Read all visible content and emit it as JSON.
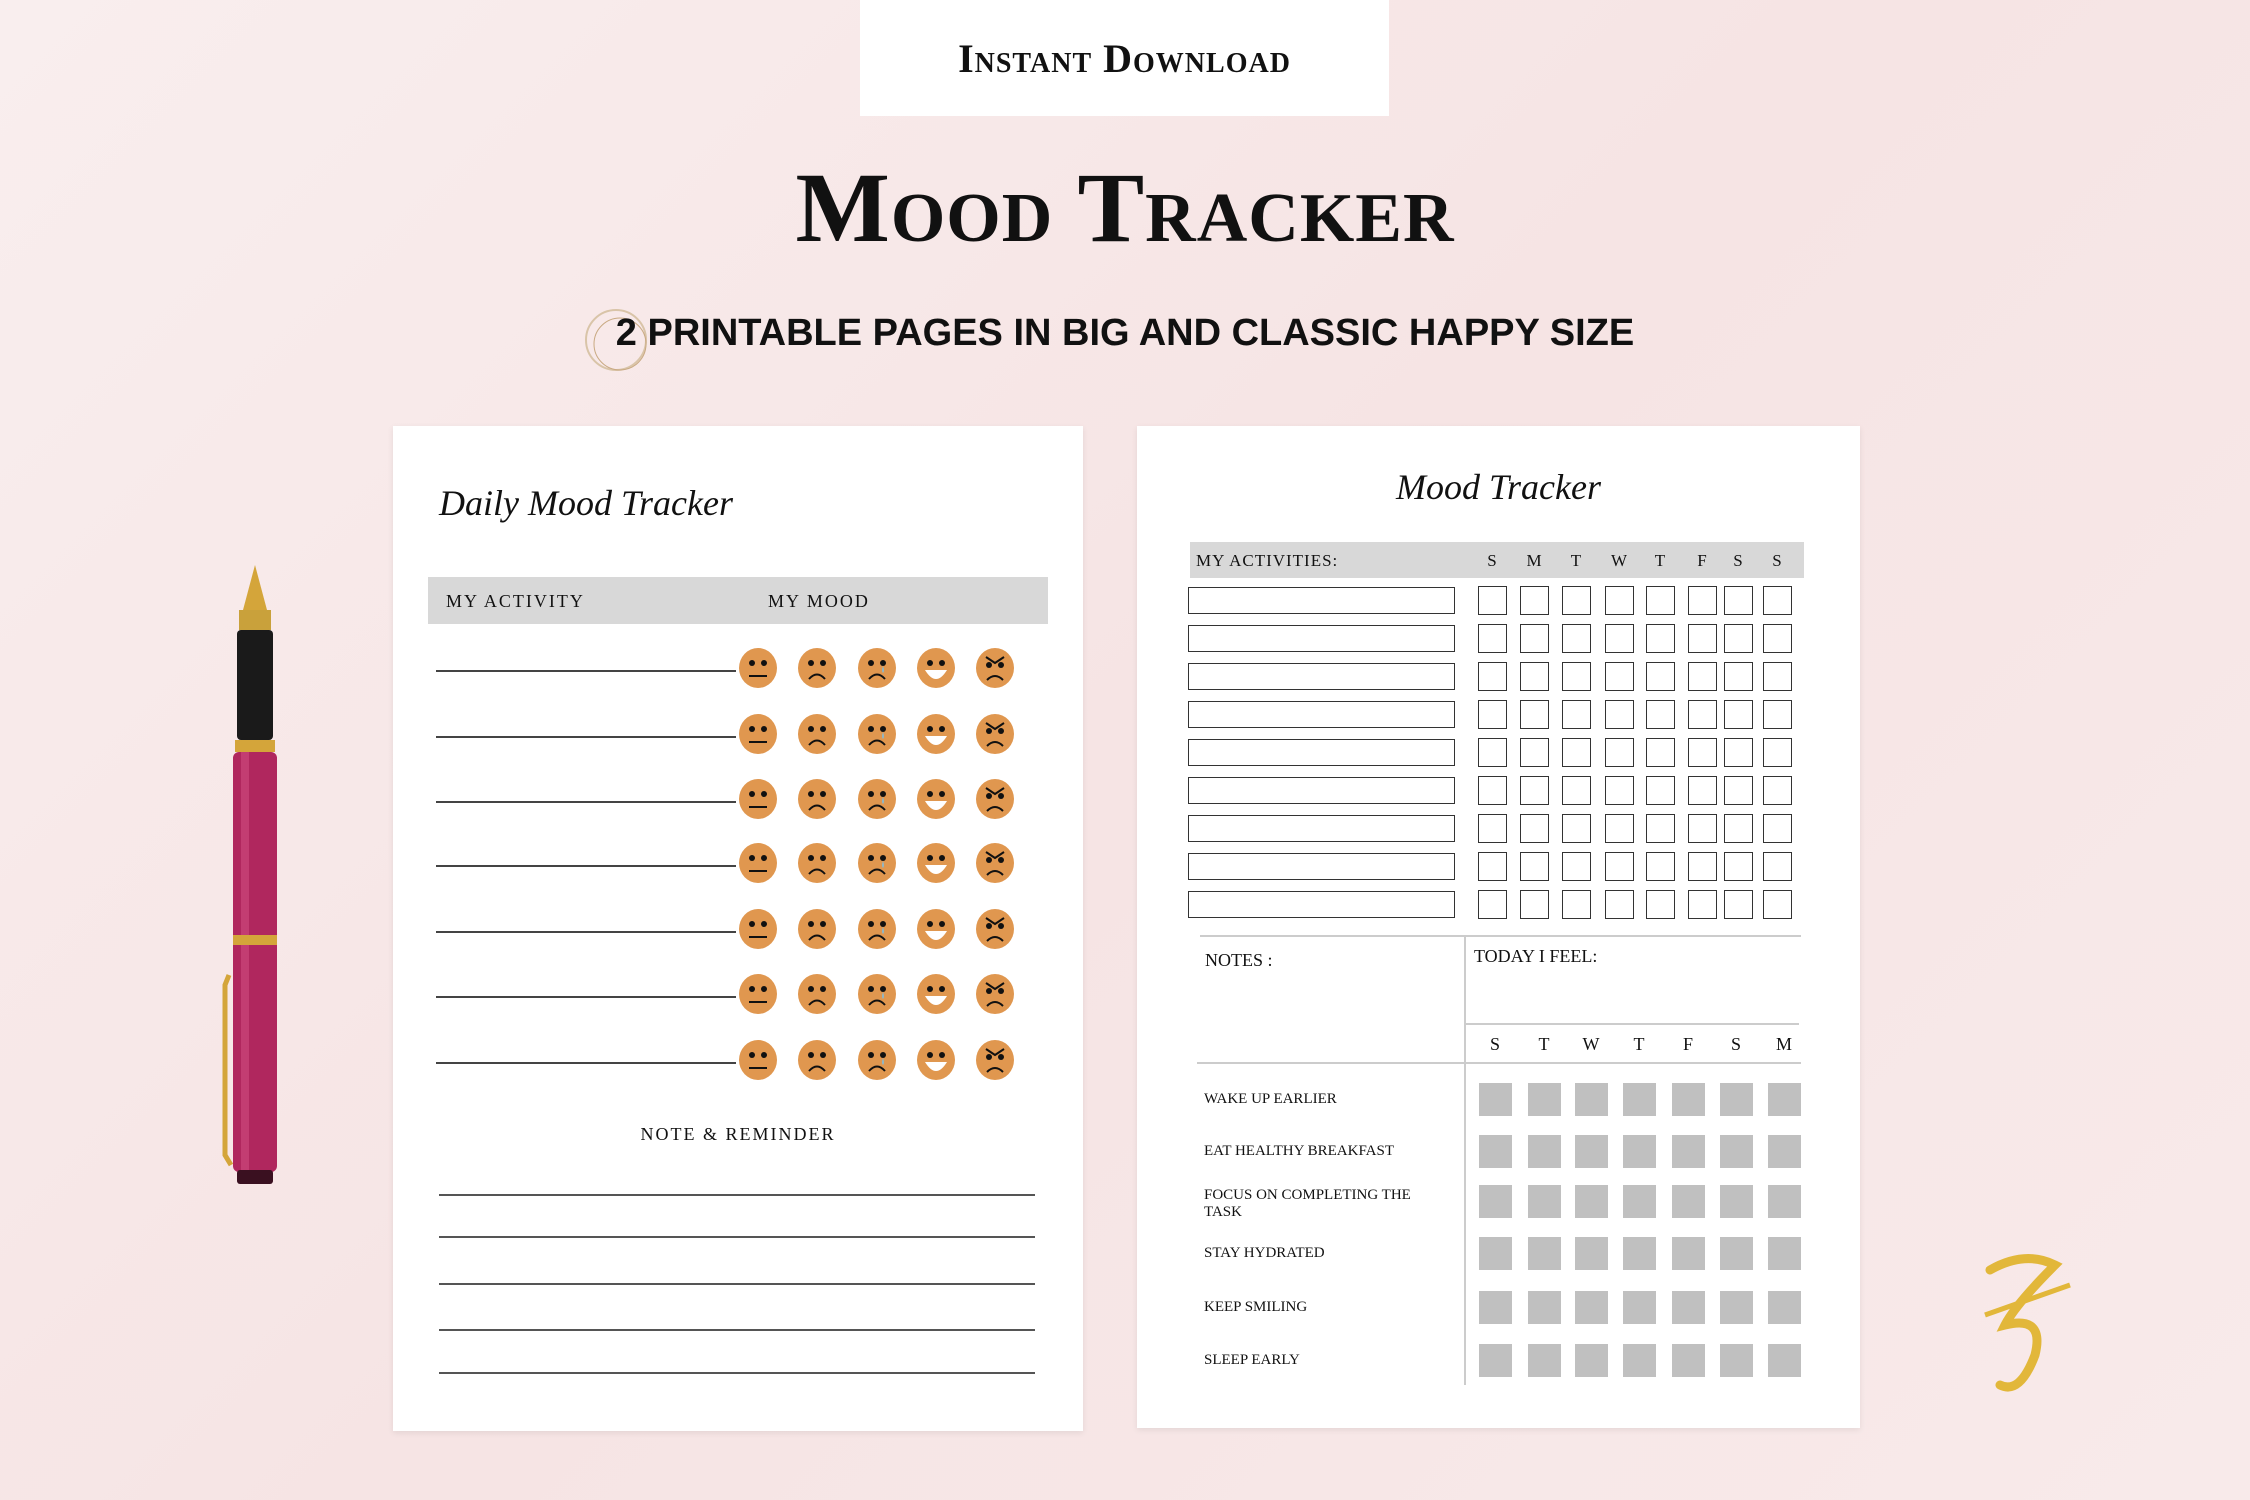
{
  "badge": "Instant Download",
  "title": "Mood Tracker",
  "subtitle": "2 PRINTABLE PAGES IN BIG AND CLASSIC HAPPY SIZE",
  "left_page": {
    "title": "Daily Mood Tracker",
    "col_activity": "MY ACTIVITY",
    "col_mood": "MY MOOD",
    "rows": 7,
    "moods": [
      "neutral",
      "sad",
      "crying",
      "happy",
      "angry"
    ],
    "face_color": "#e0974f",
    "note_heading": "NOTE & REMINDER",
    "note_lines": 5
  },
  "right_page": {
    "title": "Mood Tracker",
    "activities_label": "MY ACTIVITIES:",
    "activity_days": [
      "S",
      "M",
      "T",
      "W",
      "T",
      "F",
      "S",
      "S"
    ],
    "activity_rows": 9,
    "notes_label": "NOTES :",
    "today_label": "TODAY I FEEL:",
    "habit_days": [
      "S",
      "T",
      "W",
      "T",
      "F",
      "S",
      "M"
    ],
    "habits": [
      "WAKE UP EARLIER",
      "EAT HEALTHY BREAKFAST",
      "FOCUS ON COMPLETING THE TASK",
      "STAY HYDRATED",
      "KEEP SMILING",
      "SLEEP EARLY"
    ]
  },
  "colors": {
    "background": "#f7e7e7",
    "header_gray": "#d8d8d8",
    "square_gray": "#c0c0c0",
    "pen": "#b0275e",
    "logo_gold": "#e2b73a"
  }
}
